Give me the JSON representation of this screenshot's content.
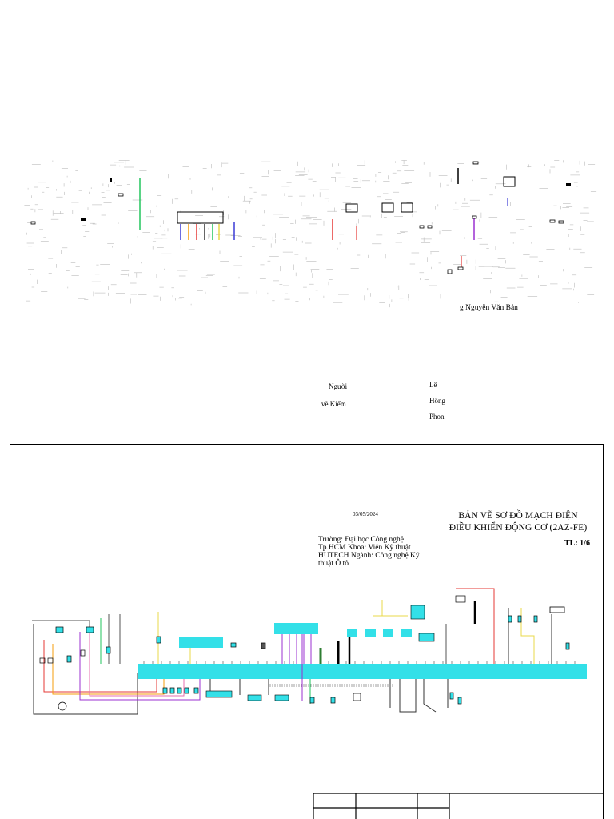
{
  "upper_sheet": {
    "drawer_name": "g  Nguyễn Văn Bản",
    "checker_label_line1": "Người",
    "checker_label_line2": "vẽ Kiểm",
    "checker_name_line1": "Lê",
    "checker_name_line2": "Hồng",
    "checker_name_line3": "Phon"
  },
  "lower_sheet": {
    "date": "03/05/2024",
    "title_line1": "BẢN VẼ SƠ ĐỒ MẠCH ĐIỆN",
    "title_line2": "ĐIỀU KHIỂN ĐỘNG CƠ (2AZ-FE)",
    "scale": "TL: 1/6",
    "school_text": "Trường: Đại học Công nghệ Tp.HCM Khoa: Viện Kỹ thuật HUTECH Ngành: Công nghệ Kỹ thuật Ô tô"
  },
  "colors": {
    "ecu_bus": "#33e0e8",
    "wire_red": "#e53935",
    "wire_green": "#22c55e",
    "wire_blue": "#3b3bd6",
    "wire_orange": "#f59e0b",
    "wire_purple": "#9b30d0",
    "wire_yellow": "#e8d84a",
    "wire_gray": "#555555"
  }
}
